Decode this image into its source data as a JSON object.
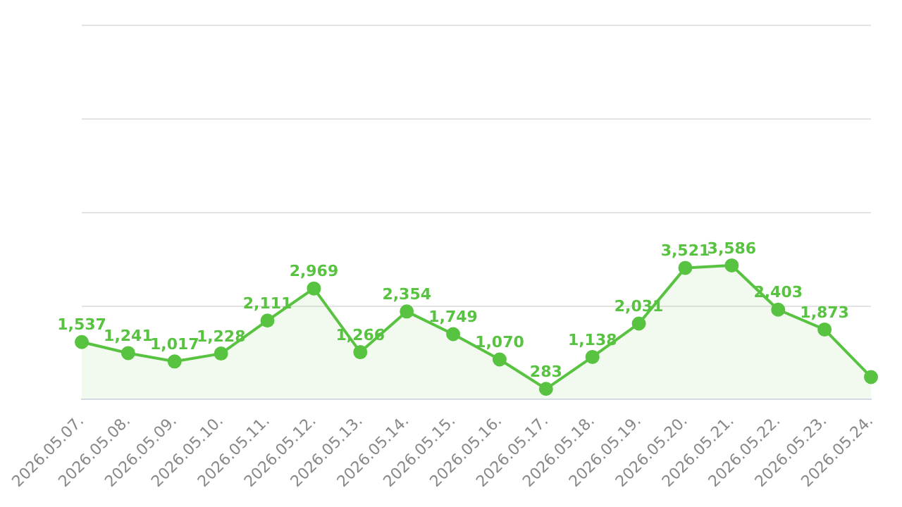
{
  "chart_data": {
    "type": "area",
    "categories": [
      "2026.05.07.",
      "2026.05.08.",
      "2026.05.09.",
      "2026.05.10.",
      "2026.05.11.",
      "2026.05.12.",
      "2026.05.13.",
      "2026.05.14.",
      "2026.05.15.",
      "2026.05.16.",
      "2026.05.17.",
      "2026.05.18.",
      "2026.05.19.",
      "2026.05.20.",
      "2026.05.21.",
      "2026.05.22.",
      "2026.05.23.",
      "2026.05.24."
    ],
    "series": [
      {
        "color": "#58c340",
        "values": [
          1537,
          1241,
          1017,
          1228,
          2111,
          2969,
          1266,
          2354,
          1749,
          1070,
          283,
          1138,
          2031,
          3521,
          3586,
          2403,
          1873,
          600
        ],
        "value_labels": [
          "1,537",
          "1,241",
          "1,017",
          "1,228",
          "2,111",
          "2,969",
          "1,266",
          "2,354",
          "1,749",
          "1,070",
          "283",
          "1,138",
          "2,031",
          "3,521",
          "3,586",
          "2,403",
          "1,873",
          null
        ]
      }
    ],
    "ylim": [
      0,
      10000
    ],
    "yticks": [
      {
        "value": 0,
        "label": null
      },
      {
        "value": 2500,
        "label": null
      },
      {
        "value": 5000,
        "label": null
      },
      {
        "value": 7500,
        "label": null
      },
      {
        "value": 10000,
        "label": null
      }
    ],
    "grid": "y",
    "marker": "circle",
    "line_style": "solid"
  }
}
